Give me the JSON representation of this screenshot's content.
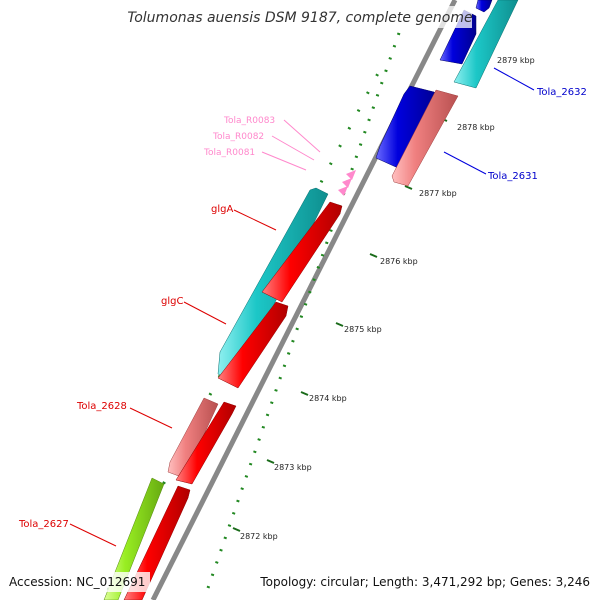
{
  "title": "Tolumonas auensis DSM 9187, complete genome",
  "footer": {
    "accession": "Accession: NC_012691",
    "summary": "Topology: circular; Length: 3,471,292 bp; Genes: 3,246"
  },
  "ticks": [
    "2872 kbp",
    "2873 kbp",
    "2874 kbp",
    "2875 kbp",
    "2876 kbp",
    "2877 kbp",
    "2878 kbp",
    "2879 kbp"
  ],
  "gene_labels": {
    "tola_2632": "Tola_2632",
    "tola_2631": "Tola_2631",
    "tola_r0083": "Tola_R0083",
    "tola_r0082": "Tola_R0082",
    "tola_r0081": "Tola_R0081",
    "glga": "glgA",
    "glgc": "glgC",
    "tola_2628": "Tola_2628",
    "tola_2627": "Tola_2627"
  },
  "colors": {
    "blue": "#0000dd",
    "cyan": "#1cc7c7",
    "red": "#ff0000",
    "salmon": "#f08080",
    "green": "#99ee22",
    "pink": "#ff88cc",
    "backbone": "#888888",
    "tick": "#228822"
  }
}
